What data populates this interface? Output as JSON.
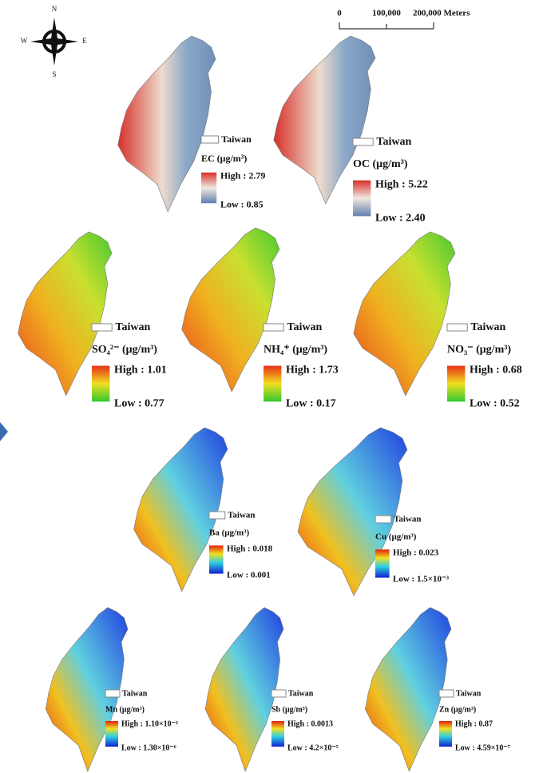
{
  "compass": {
    "north": "N",
    "east": "E",
    "south": "S",
    "west": "W"
  },
  "scale_bar": {
    "labels": [
      "0",
      "100,000",
      "200,000 Meters"
    ]
  },
  "maps": [
    {
      "legend_title": "Taiwan",
      "variable": "EC (μg/m³)",
      "high": "High : 2.79",
      "low": "Low : 0.85"
    },
    {
      "legend_title": "Taiwan",
      "variable": "OC (μg/m³)",
      "high": "High : 5.22",
      "low": "Low : 2.40"
    },
    {
      "legend_title": "Taiwan",
      "variable": "SO₄²⁻ (μg/m³)",
      "high": "High : 1.01",
      "low": "Low : 0.77"
    },
    {
      "legend_title": "Taiwan",
      "variable": "NH₄⁺ (μg/m³)",
      "high": "High : 1.73",
      "low": "Low : 0.17"
    },
    {
      "legend_title": "Taiwan",
      "variable": "NO₃⁻ (μg/m³)",
      "high": "High : 0.68",
      "low": "Low : 0.52"
    },
    {
      "legend_title": "Taiwan",
      "variable": "Ba (μg/m³)",
      "high": "High : 0.018",
      "low": "Low : 0.001"
    },
    {
      "legend_title": "Taiwan",
      "variable": "Cu (μg/m³)",
      "high": "High : 0.023",
      "low": "Low : 1.5×10⁻³"
    },
    {
      "legend_title": "Taiwan",
      "variable": "Mn (μg/m³)",
      "high": "High : 1.10×10⁻³",
      "low": "Low : 1.30×10⁻⁶"
    },
    {
      "legend_title": "Taiwan",
      "variable": "Sb (μg/m³)",
      "high": "High : 0.0013",
      "low": "Low : 4.2×10⁻⁵"
    },
    {
      "legend_title": "Taiwan",
      "variable": "Zn (μg/m³)",
      "high": "High : 0.87",
      "low": "Low : 4.59×10⁻⁷"
    }
  ]
}
